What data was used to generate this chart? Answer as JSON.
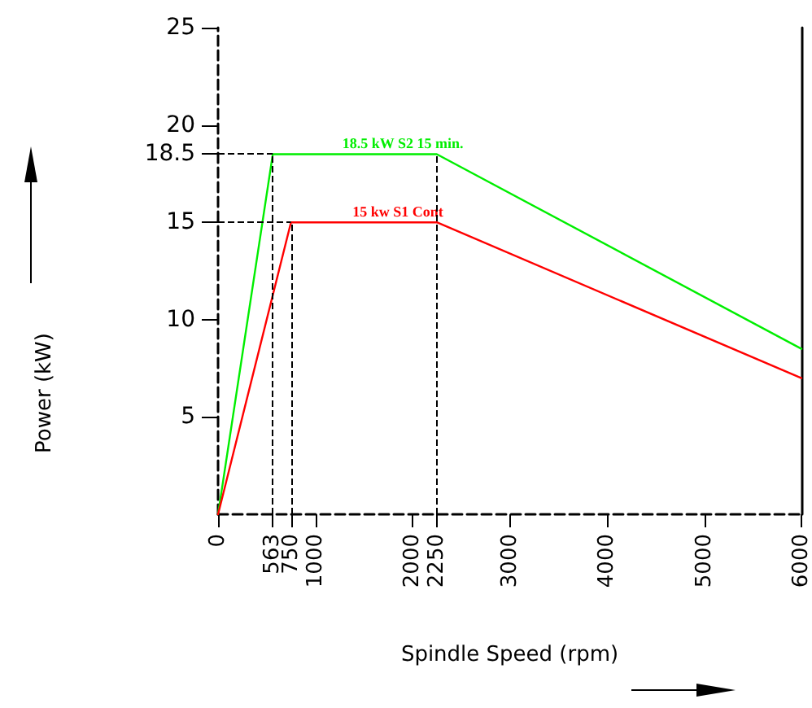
{
  "chart_data": {
    "type": "line",
    "xlabel": "Spindle Speed (rpm)",
    "ylabel": "Power (kW)",
    "xlim": [
      0,
      6000
    ],
    "xticks": [
      0,
      563,
      750,
      1000,
      2000,
      2250,
      3000,
      4000,
      5000,
      6000
    ],
    "ylim": [
      0,
      25
    ],
    "yticks": [
      5,
      10,
      15,
      18.5,
      20,
      25
    ],
    "series": [
      {
        "color": "#00ee00",
        "x": [
          0,
          563,
          2250,
          6000
        ],
        "values": [
          0,
          18.5,
          18.5,
          8.5
        ]
      },
      {
        "color": "#ff0000",
        "x": [
          0,
          750,
          2250,
          6000
        ],
        "values": [
          0,
          15,
          15,
          7
        ]
      }
    ],
    "annotations": [
      {
        "text": "18.5 kW S2 15 min.",
        "x": 1900,
        "y": 18.5
      },
      {
        "text": "15 kw S1 Cont",
        "x": 1850,
        "y": 15
      }
    ],
    "ref_lines": [
      {
        "axis": "y",
        "value": 18.5,
        "color": "#000000",
        "line_style": "dashed"
      },
      {
        "axis": "y",
        "value": 15,
        "color": "#000000",
        "line_style": "dashed"
      },
      {
        "axis": "x",
        "value": 563,
        "color": "#000000",
        "line_style": "dashed"
      },
      {
        "axis": "x",
        "value": 750,
        "color": "#000000",
        "line_style": "dashed"
      },
      {
        "axis": "x",
        "value": 2250,
        "color": "#000000",
        "line_style": "dashed"
      }
    ],
    "grid": false,
    "marker": "none",
    "line_style": "solid"
  }
}
